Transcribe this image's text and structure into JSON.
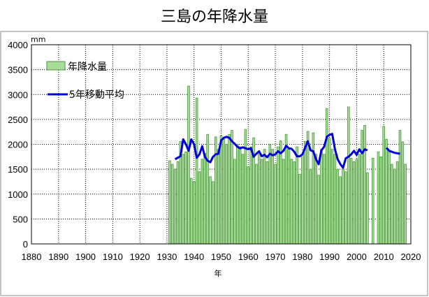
{
  "chart_data": {
    "type": "bar",
    "title": "三島の年降水量",
    "xlabel": "年",
    "ylabel": "mm",
    "ylim": [
      0,
      4000
    ],
    "yticks": [
      "0",
      "500",
      "1000",
      "1500",
      "2000",
      "2500",
      "3000",
      "3500",
      "4000"
    ],
    "xlim": [
      1880,
      2020
    ],
    "xticks": [
      "1880",
      "1890",
      "1900",
      "1910",
      "1920",
      "1930",
      "1940",
      "1950",
      "1960",
      "1970",
      "1980",
      "1990",
      "2000",
      "2010",
      "2020"
    ],
    "grid": true,
    "legend_position": "top-left",
    "colors": {
      "bar_fill": "#a9dc9a",
      "bar_stroke": "#4a9a3a",
      "line": "#0000dd",
      "grid": "#000000"
    },
    "series": [
      {
        "name": "年降水量",
        "type": "bar",
        "x": [
          1931,
          1932,
          1933,
          1934,
          1935,
          1936,
          1937,
          1938,
          1939,
          1940,
          1941,
          1942,
          1943,
          1944,
          1945,
          1946,
          1947,
          1948,
          1949,
          1950,
          1951,
          1952,
          1953,
          1954,
          1955,
          1956,
          1957,
          1958,
          1959,
          1960,
          1961,
          1962,
          1963,
          1964,
          1965,
          1966,
          1967,
          1968,
          1969,
          1970,
          1971,
          1972,
          1973,
          1974,
          1975,
          1976,
          1977,
          1978,
          1979,
          1980,
          1981,
          1982,
          1983,
          1984,
          1985,
          1986,
          1987,
          1988,
          1989,
          1990,
          1991,
          1992,
          1993,
          1994,
          1995,
          1996,
          1997,
          1998,
          1999,
          2000,
          2001,
          2002,
          2003,
          2004,
          2006,
          2008,
          2009,
          2010,
          2011,
          2012,
          2013,
          2014,
          2015,
          2016,
          2017,
          2018
        ],
        "values": [
          1670,
          1600,
          1500,
          1650,
          2060,
          1800,
          1850,
          3170,
          1320,
          1250,
          2930,
          1450,
          1700,
          1820,
          2200,
          1350,
          1250,
          2150,
          1900,
          2170,
          2100,
          2000,
          2200,
          2280,
          1700,
          2000,
          1950,
          1800,
          2300,
          1550,
          1950,
          2130,
          1600,
          1850,
          1700,
          1900,
          1650,
          2000,
          1900,
          1600,
          1950,
          2070,
          1700,
          2200,
          1900,
          1700,
          1650,
          1950,
          1400,
          1800,
          2060,
          2260,
          1500,
          2230,
          1800,
          1380,
          1900,
          1800,
          2720,
          2120,
          1900,
          1800,
          1500,
          1350,
          1500,
          1450,
          2750,
          1720,
          1650,
          1700,
          1800,
          2280,
          2380,
          1430,
          1720,
          1850,
          1750,
          2360,
          2100,
          1850,
          1600,
          1500,
          1650,
          2280,
          2050,
          1600
        ]
      },
      {
        "name": "5年移動平均",
        "type": "line",
        "x": [
          1933,
          1934,
          1935,
          1936,
          1937,
          1938,
          1939,
          1940,
          1941,
          1942,
          1943,
          1944,
          1945,
          1946,
          1947,
          1948,
          1949,
          1950,
          1951,
          1952,
          1953,
          1954,
          1955,
          1956,
          1957,
          1958,
          1959,
          1960,
          1961,
          1962,
          1963,
          1964,
          1965,
          1966,
          1967,
          1968,
          1969,
          1970,
          1971,
          1972,
          1973,
          1974,
          1975,
          1976,
          1977,
          1978,
          1979,
          1980,
          1981,
          1982,
          1983,
          1984,
          1985,
          1986,
          1987,
          1988,
          1989,
          1990,
          1991,
          1992,
          1993,
          1994,
          1995,
          1996,
          1997,
          1998,
          1999,
          2000,
          2001,
          2002,
          2003,
          2004,
          null,
          2011,
          2012,
          2013,
          2014,
          2015,
          2016
        ],
        "values": [
          1700,
          1730,
          1760,
          2100,
          2000,
          1870,
          2100,
          2000,
          1730,
          1800,
          1960,
          1750,
          1670,
          1640,
          1750,
          1800,
          1810,
          2080,
          2130,
          2150,
          2130,
          2060,
          2010,
          1950,
          1920,
          1940,
          1920,
          1900,
          1920,
          1750,
          1810,
          1860,
          1760,
          1790,
          1740,
          1810,
          1780,
          1800,
          1860,
          1820,
          1870,
          1970,
          1920,
          1910,
          1850,
          1760,
          1760,
          1800,
          1930,
          2060,
          1880,
          1860,
          1700,
          1600,
          1880,
          1950,
          2150,
          2190,
          2210,
          1900,
          1700,
          1600,
          1530,
          1720,
          1750,
          1800,
          1870,
          1790,
          1900,
          1820,
          1900,
          1880,
          null,
          1930,
          1870,
          1850,
          1830,
          1820,
          1810
        ]
      }
    ]
  }
}
